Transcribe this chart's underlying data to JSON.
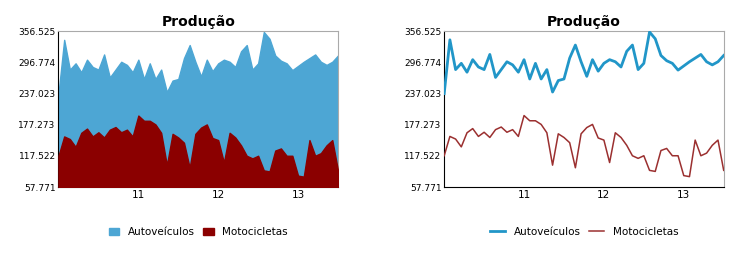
{
  "title": "Produção",
  "ylim": [
    57.771,
    356.525
  ],
  "yticks": [
    57.771,
    117.522,
    177.273,
    237.023,
    296.774,
    356.525
  ],
  "color_auto_fill": "#4da6d4",
  "color_moto_fill": "#8b0000",
  "color_auto_line": "#2196c8",
  "color_moto_line": "#9b3030",
  "legend_label_auto": "Autoveículos",
  "legend_label_moto": "Motocicletas",
  "background": "#ffffff",
  "border_color": "#aaaaaa",
  "auto_data": [
    237,
    340,
    283,
    295,
    278,
    302,
    288,
    283,
    312,
    268,
    283,
    298,
    292,
    278,
    302,
    265,
    295,
    265,
    283,
    240,
    262,
    265,
    305,
    330,
    298,
    270,
    302,
    280,
    295,
    302,
    298,
    288,
    318,
    330,
    283,
    295,
    355,
    342,
    310,
    300,
    295,
    282,
    290,
    298,
    305,
    312,
    298,
    292,
    298,
    310
  ],
  "moto_data": [
    118,
    155,
    150,
    135,
    162,
    170,
    155,
    163,
    153,
    168,
    173,
    163,
    168,
    155,
    195,
    185,
    185,
    178,
    162,
    100,
    160,
    153,
    143,
    95,
    160,
    172,
    178,
    152,
    148,
    105,
    162,
    153,
    138,
    118,
    113,
    118,
    90,
    88,
    128,
    132,
    118,
    118,
    80,
    78,
    148,
    118,
    123,
    138,
    148,
    90
  ]
}
